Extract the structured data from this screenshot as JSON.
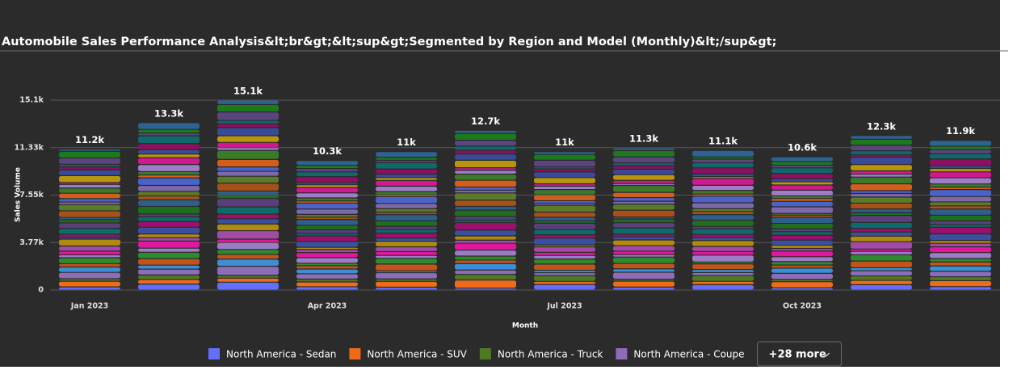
{
  "chart_data": {
    "type": "stacked-bar",
    "title": "Automobile Sales Performance Analysis&lt;br&gt;&lt;sup&gt;Segmented by Region and Model (Monthly)&lt;/sup&gt;",
    "x_label": "Month",
    "y_label": "Sales Volume",
    "categories": [
      "Jan 2023",
      null,
      null,
      "Apr 2023",
      null,
      null,
      "Jul 2023",
      null,
      null,
      "Oct 2023",
      null,
      null
    ],
    "ylim": [
      0,
      15100
    ],
    "yticks": [
      0,
      {
        "value": 3775,
        "label": "3.77k"
      },
      {
        "value": 7550,
        "label": "7.55k"
      },
      {
        "value": 11325,
        "label": "11.33k"
      },
      {
        "value": 15100,
        "label": "15.1k"
      }
    ],
    "grid": true,
    "totals": [
      11200,
      13300,
      15100,
      10300,
      11000,
      12700,
      11000,
      11300,
      11100,
      10600,
      12300,
      11900
    ],
    "total_labels": [
      "11.2k",
      "13.3k",
      "15.1k",
      "10.3k",
      "11k",
      "12.7k",
      "11k",
      "11.3k",
      "11.1k",
      "10.6k",
      "12.3k",
      "11.9k"
    ],
    "legend_more": "+28 more",
    "series": [
      {
        "name": "North America - Sedan",
        "color": "#636efa",
        "values": [
          250,
          476,
          622,
          262,
          224,
          147,
          444,
          233,
          427,
          181,
          424,
          272
        ]
      },
      {
        "name": "North America - SUV",
        "color": "#ef6a19",
        "values": [
          450,
          356,
          322,
          382,
          464,
          647,
          244,
          473,
          267,
          481,
          344,
          472
        ]
      },
      {
        "name": "North America - Truck",
        "color": "#4f7a24",
        "values": [
          200,
          366,
          222,
          222,
          194,
          447,
          464,
          153,
          457,
          181,
          354,
          312
        ]
      },
      {
        "name": "North America - Coupe",
        "color": "#8d6cb8",
        "values": [
          500,
          466,
          722,
          422,
          494,
          347,
          224,
          553,
          237,
          481,
          414,
          432
        ]
      },
      {
        "color": "#3a8fd6",
        "values": [
          430,
          316,
          572,
          382,
          144,
          517,
          194,
          273,
          247,
          421,
          234,
          422
        ]
      },
      {
        "color": "#c0541a",
        "values": [
          270,
          516,
          372,
          262,
          544,
          277,
          494,
          433,
          447,
          241,
          534,
          322
        ]
      },
      {
        "color": "#2f8a2f",
        "values": [
          470,
          506,
          392,
          202,
          454,
          317,
          404,
          503,
          147,
          271,
          504,
          272
        ]
      },
      {
        "color": "#9c7cc4",
        "values": [
          230,
          326,
          552,
          442,
          234,
          477,
          284,
          203,
          547,
          391,
          264,
          472
        ]
      },
      {
        "color": "#e0189c",
        "values": [
          290,
          566,
          272,
          402,
          304,
          547,
          244,
          263,
          287,
          451,
          184,
          462
        ]
      },
      {
        "color": "#a34aa8",
        "values": [
          410,
          266,
          672,
          242,
          384,
          247,
          444,
          443,
          407,
          211,
          584,
          282
        ]
      },
      {
        "color": "#b08a0c",
        "values": [
          550,
          296,
          532,
          172,
          434,
          337,
          144,
          453,
          467,
          251,
          444,
          222
        ]
      },
      {
        "color": "#3b4fa0",
        "values": [
          150,
          536,
          412,
          472,
          254,
          457,
          544,
          253,
          227,
          411,
          324,
          522
        ]
      },
      {
        "color": "#9c0f6b",
        "values": [
          230,
          456,
          372,
          442,
          404,
          597,
          264,
          203,
          257,
          391,
          284,
          522
        ]
      },
      {
        "color": "#0d6b6b",
        "values": [
          470,
          376,
          572,
          202,
          284,
          197,
          424,
          503,
          437,
          271,
          484,
          222
        ]
      },
      {
        "color": "#5a3f7a",
        "values": [
          440,
          216,
          672,
          282,
          244,
          277,
          494,
          413,
          197,
          231,
          564,
          292
        ]
      },
      {
        "color": "#1f6e1f",
        "values": [
          260,
          616,
          272,
          362,
          444,
          517,
          194,
          293,
          497,
          431,
          204,
          452
        ]
      },
      {
        "color": "#2d5f8a",
        "values": [
          170,
          516,
          322,
          462,
          494,
          297,
          284,
          153,
          447,
          481,
          304,
          492
        ]
      },
      {
        "color": "#a8501a",
        "values": [
          530,
          316,
          622,
          182,
          194,
          497,
          404,
          553,
          247,
          181,
          464,
          252
        ]
      },
      {
        "color": "#5b7a2a",
        "values": [
          500,
          356,
          552,
          222,
          284,
          577,
          544,
          473,
          227,
          131,
          484,
          312
        ]
      },
      {
        "color": "#7d68a8",
        "values": [
          200,
          476,
          392,
          422,
          404,
          217,
          144,
          233,
          467,
          531,
          284,
          432
        ]
      },
      {
        "color": "#4a63c8",
        "values": [
          270,
          596,
          352,
          472,
          544,
          247,
          224,
          293,
          527,
          431,
          224,
          552
        ]
      },
      {
        "color": "#d45c1c",
        "values": [
          430,
          236,
          592,
          172,
          144,
          547,
          464,
          413,
          167,
          231,
          544,
          192
        ]
      },
      {
        "color": "#3a7a2a",
        "values": [
          410,
          266,
          722,
          242,
          254,
          487,
          424,
          553,
          287,
          211,
          534,
          252
        ]
      },
      {
        "color": "#a07cc8",
        "values": [
          290,
          566,
          222,
          402,
          434,
          307,
          264,
          153,
          407,
          451,
          234,
          492
        ]
      },
      {
        "color": "#d01890",
        "values": [
          150,
          536,
          412,
          422,
          464,
          197,
          194,
          253,
          547,
          411,
          264,
          472
        ]
      },
      {
        "color": "#b8960c",
        "values": [
          550,
          296,
          532,
          222,
          224,
          597,
          494,
          453,
          147,
          251,
          504,
          272
        ]
      },
      {
        "color": "#384a98",
        "values": [
          450,
          336,
          652,
          162,
          264,
          497,
          444,
          433,
          207,
          241,
          584,
          212
        ]
      },
      {
        "color": "#8c1060",
        "values": [
          250,
          496,
          292,
          482,
          424,
          297,
          244,
          273,
          487,
          421,
          184,
          532
        ]
      },
      {
        "color": "#106868",
        "values": [
          200,
          616,
          272,
          382,
          494,
          337,
          164,
          233,
          407,
          451,
          324,
          432
        ]
      },
      {
        "color": "#5c4480",
        "values": [
          500,
          216,
          672,
          262,
          194,
          457,
          524,
          473,
          287,
          211,
          444,
          312
        ]
      },
      {
        "color": "#1c7a1c",
        "values": [
          530,
          296,
          592,
          262,
          244,
          547,
          464,
          503,
          167,
          281,
          474,
          282
        ]
      },
      {
        "color": "#2e6290",
        "values": [
          170,
          536,
          352,
          382,
          444,
          247,
          224,
          203,
          527,
          381,
          294,
          462
        ]
      }
    ]
  }
}
